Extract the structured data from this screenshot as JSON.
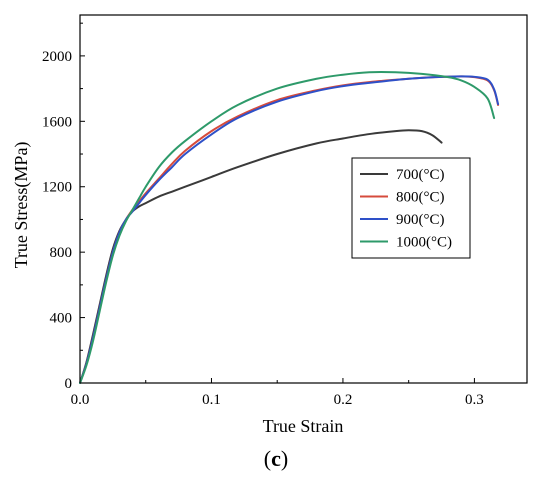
{
  "chart_data": {
    "type": "line",
    "xlabel": "True Strain",
    "ylabel": "True Stress(MPa)",
    "panel_label_open": "(",
    "panel_label_letter": "c",
    "panel_label_close": ")",
    "xlim": [
      0.0,
      0.34
    ],
    "ylim": [
      0,
      2250
    ],
    "xticks": [
      0.0,
      0.1,
      0.2,
      0.3
    ],
    "xtick_labels": [
      "0.0",
      "0.1",
      "0.2",
      "0.3"
    ],
    "yticks": [
      0,
      400,
      800,
      1200,
      1600,
      2000
    ],
    "ytick_labels": [
      "0",
      "400",
      "800",
      "1200",
      "1600",
      "2000"
    ],
    "grid": false,
    "legend_position": "right-middle",
    "series": [
      {
        "name": "700(°C)",
        "color": "#3a3a3a",
        "x": [
          0.0,
          0.005,
          0.01,
          0.015,
          0.02,
          0.025,
          0.03,
          0.035,
          0.04,
          0.045,
          0.05,
          0.06,
          0.07,
          0.08,
          0.1,
          0.12,
          0.15,
          0.18,
          0.2,
          0.22,
          0.24,
          0.25,
          0.26,
          0.268,
          0.275
        ],
        "y": [
          0,
          130,
          300,
          480,
          660,
          820,
          930,
          1000,
          1050,
          1080,
          1100,
          1140,
          1170,
          1200,
          1260,
          1320,
          1400,
          1465,
          1495,
          1522,
          1540,
          1545,
          1540,
          1515,
          1470
        ]
      },
      {
        "name": "800(°C)",
        "color": "#d64b3c",
        "x": [
          0.0,
          0.005,
          0.01,
          0.015,
          0.02,
          0.025,
          0.03,
          0.035,
          0.04,
          0.045,
          0.05,
          0.06,
          0.07,
          0.08,
          0.1,
          0.12,
          0.15,
          0.18,
          0.2,
          0.22,
          0.25,
          0.27,
          0.29,
          0.3,
          0.31,
          0.315,
          0.318
        ],
        "y": [
          0,
          120,
          280,
          460,
          640,
          800,
          920,
          1000,
          1060,
          1110,
          1160,
          1250,
          1340,
          1420,
          1540,
          1630,
          1730,
          1790,
          1820,
          1840,
          1860,
          1870,
          1875,
          1870,
          1850,
          1790,
          1700
        ]
      },
      {
        "name": "900(°C)",
        "color": "#2e50c8",
        "x": [
          0.0,
          0.005,
          0.01,
          0.015,
          0.02,
          0.025,
          0.03,
          0.035,
          0.04,
          0.045,
          0.05,
          0.06,
          0.07,
          0.08,
          0.1,
          0.12,
          0.15,
          0.18,
          0.2,
          0.22,
          0.25,
          0.27,
          0.29,
          0.3,
          0.31,
          0.315,
          0.318
        ],
        "y": [
          0,
          120,
          280,
          460,
          640,
          800,
          920,
          1000,
          1050,
          1100,
          1150,
          1240,
          1320,
          1400,
          1520,
          1620,
          1720,
          1785,
          1815,
          1835,
          1860,
          1870,
          1875,
          1872,
          1855,
          1795,
          1705
        ]
      },
      {
        "name": "1000(°C)",
        "color": "#2e9a6a",
        "x": [
          0.0,
          0.005,
          0.01,
          0.015,
          0.02,
          0.025,
          0.03,
          0.035,
          0.04,
          0.045,
          0.05,
          0.06,
          0.07,
          0.08,
          0.1,
          0.12,
          0.15,
          0.18,
          0.2,
          0.22,
          0.24,
          0.26,
          0.28,
          0.29,
          0.3,
          0.31,
          0.315
        ],
        "y": [
          0,
          110,
          260,
          440,
          620,
          780,
          900,
          990,
          1060,
          1130,
          1200,
          1320,
          1410,
          1480,
          1600,
          1700,
          1800,
          1860,
          1885,
          1900,
          1900,
          1890,
          1870,
          1850,
          1810,
          1740,
          1620
        ]
      }
    ]
  }
}
